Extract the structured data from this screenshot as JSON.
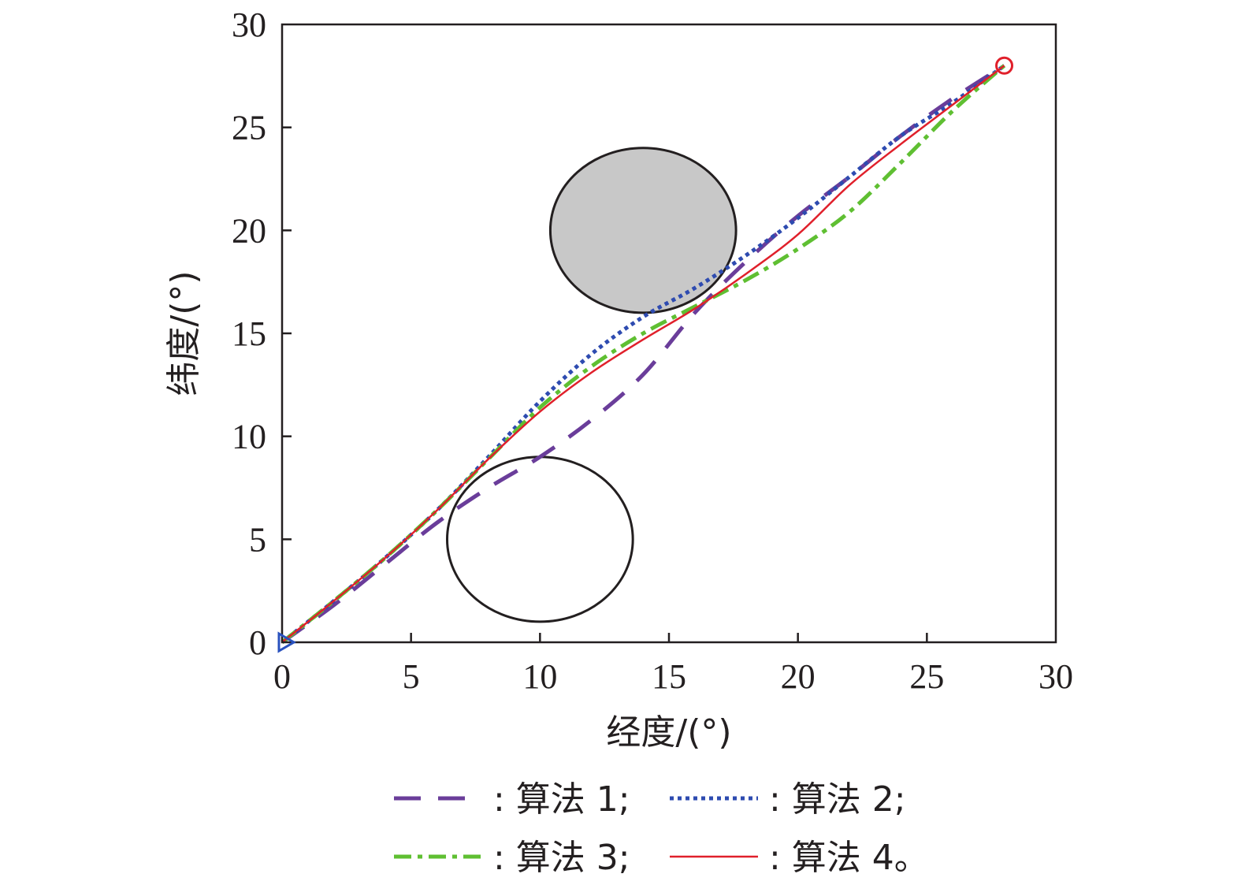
{
  "chart_data": {
    "type": "line",
    "xlabel": "经度/(°)",
    "ylabel": "纬度/(°)",
    "xlim": [
      0,
      30
    ],
    "ylim": [
      0,
      30
    ],
    "xticks": [
      "0",
      "5",
      "10",
      "15",
      "20",
      "25",
      "30"
    ],
    "yticks": [
      "0",
      "5",
      "10",
      "15",
      "20",
      "25",
      "30"
    ],
    "grid": false,
    "legend_position": "bottom",
    "start_marker": {
      "shape": "triangle",
      "x": 0,
      "y": 0,
      "color": "#2a52be"
    },
    "end_marker": {
      "shape": "circle",
      "x": 28,
      "y": 28,
      "color": "#e0202b"
    },
    "obstacles": [
      {
        "center": [
          14,
          20
        ],
        "radius_x": 3.6,
        "radius_y": 4,
        "fill": "#c8c8c8"
      },
      {
        "center": [
          10,
          5
        ],
        "radius_x": 3.6,
        "radius_y": 4,
        "fill": "none"
      }
    ],
    "series": [
      {
        "name": "算法 1;",
        "color": "#6a3d9a",
        "dash": "long-dash",
        "x": [
          0,
          2,
          4,
          6,
          8,
          10,
          12,
          14,
          16,
          18,
          20,
          22,
          24,
          26,
          28
        ],
        "y": [
          0,
          1.8,
          3.8,
          5.8,
          7.5,
          9.0,
          10.8,
          13.0,
          16.0,
          18.5,
          20.7,
          22.6,
          24.6,
          26.4,
          28
        ]
      },
      {
        "name": "算法 2;",
        "color": "#2e4bb0",
        "dash": "dotted",
        "x": [
          0,
          2,
          4,
          6,
          8,
          10,
          12,
          14,
          16,
          18,
          20,
          22,
          24,
          26,
          28
        ],
        "y": [
          0,
          2.0,
          4.1,
          6.4,
          9.0,
          11.7,
          14.0,
          15.8,
          17.2,
          18.8,
          20.6,
          22.6,
          24.6,
          26.2,
          28
        ]
      },
      {
        "name": "算法 3;",
        "color": "#5fbf32",
        "dash": "dash-dot",
        "x": [
          0,
          2,
          4,
          6,
          8,
          10,
          12,
          14,
          16,
          18,
          20,
          22,
          24,
          26,
          28
        ],
        "y": [
          0,
          2.0,
          4.1,
          6.4,
          8.9,
          11.4,
          13.4,
          15.0,
          16.3,
          17.6,
          19.1,
          20.9,
          23.3,
          25.8,
          28
        ]
      },
      {
        "name": "算法 4。",
        "color": "#e0202b",
        "dash": "solid",
        "x": [
          0,
          2,
          4,
          6,
          8,
          10,
          12,
          14,
          16,
          18,
          20,
          22,
          24,
          26,
          28
        ],
        "y": [
          0,
          2.0,
          4.1,
          6.4,
          8.9,
          11.2,
          13.1,
          14.7,
          16.2,
          17.9,
          19.8,
          22.2,
          24.2,
          26.1,
          28
        ]
      }
    ]
  }
}
